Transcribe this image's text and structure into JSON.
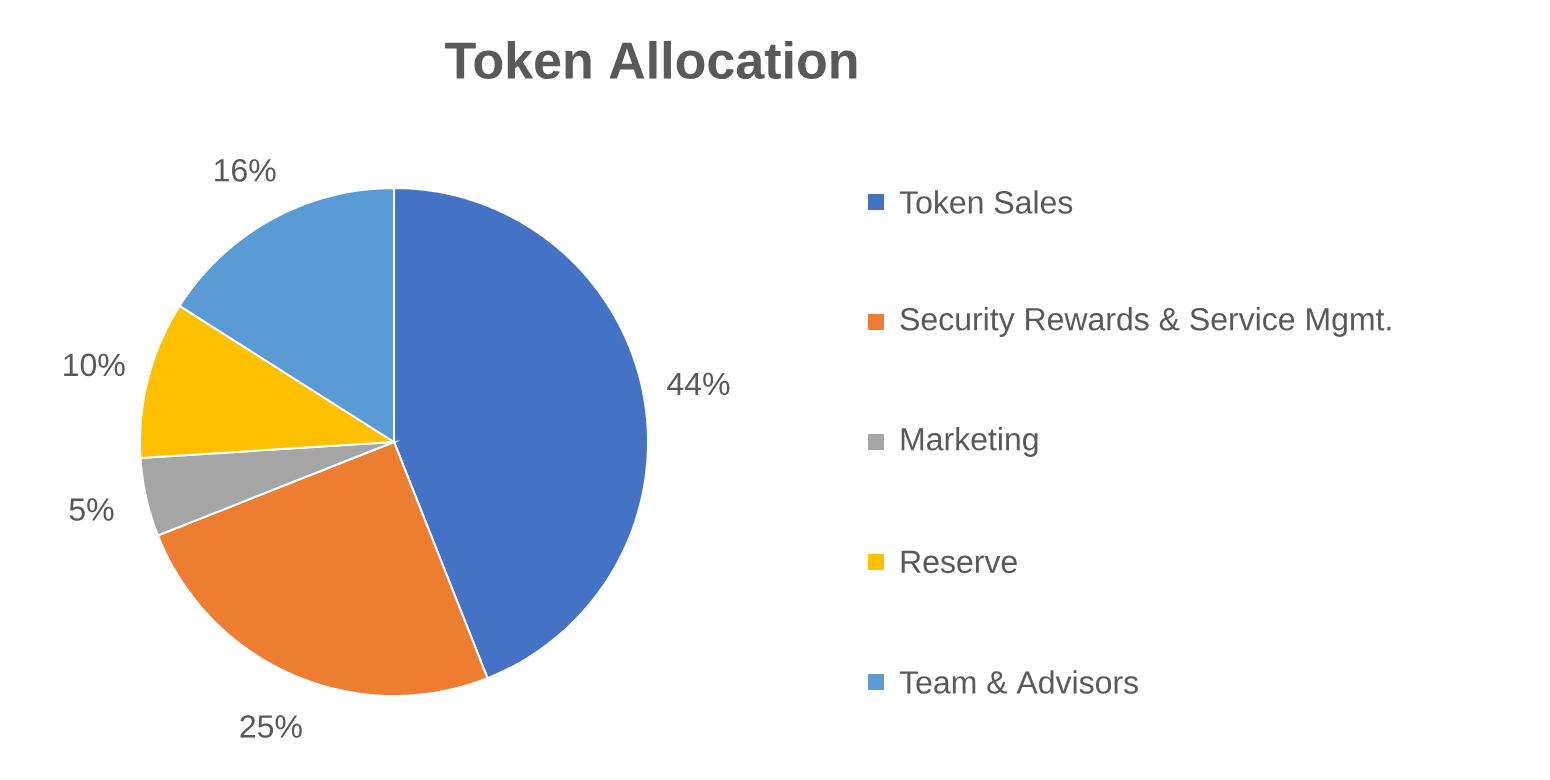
{
  "chart_data": {
    "type": "pie",
    "title": "Token Allocation",
    "categories": [
      "Token Sales",
      "Security Rewards & Service Mgmt.",
      "Marketing",
      "Reserve",
      "Team & Advisors"
    ],
    "values": [
      44,
      25,
      5,
      10,
      16
    ],
    "value_labels": [
      "44%",
      "25%",
      "5%",
      "10%",
      "16%"
    ],
    "colors": [
      "#4472c4",
      "#ed7d31",
      "#a5a5a5",
      "#ffc000",
      "#5b9bd5"
    ],
    "legend": "right"
  }
}
